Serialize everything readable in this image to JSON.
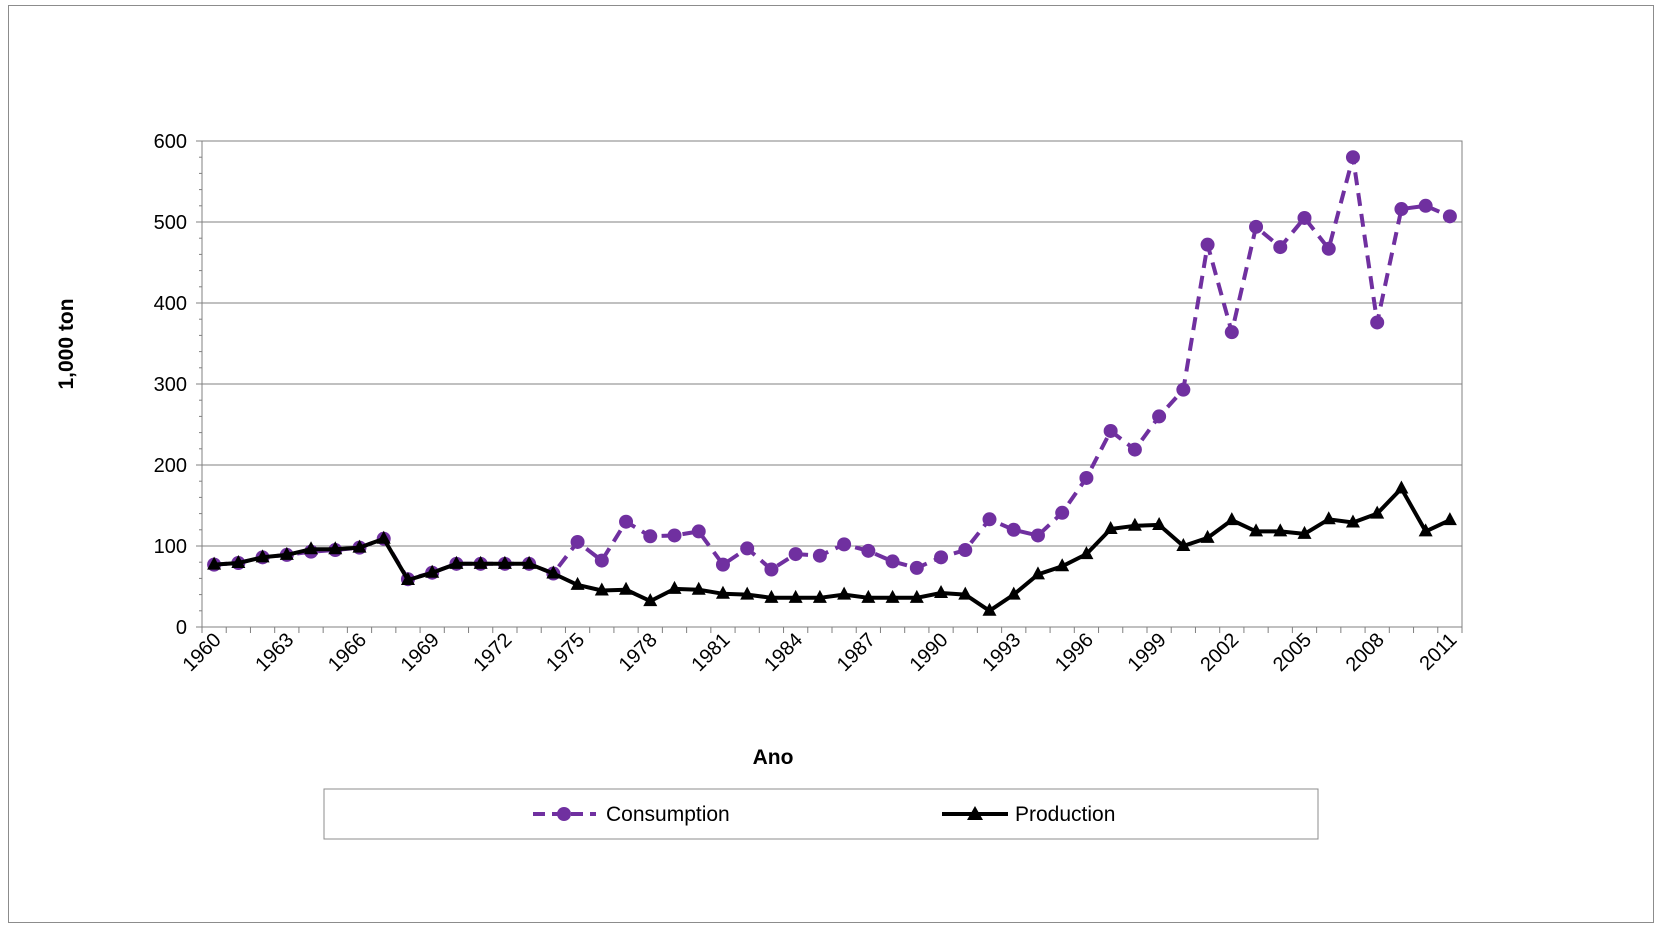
{
  "chart_data": {
    "type": "line",
    "xlabel": "Ano",
    "ylabel": "1,000 ton",
    "ylim": [
      0,
      600
    ],
    "yticks": [
      "0",
      "100",
      "200",
      "300",
      "400",
      "500",
      "600"
    ],
    "x": [
      1960,
      1961,
      1962,
      1963,
      1964,
      1965,
      1966,
      1967,
      1968,
      1969,
      1970,
      1971,
      1972,
      1973,
      1974,
      1975,
      1976,
      1977,
      1978,
      1979,
      1980,
      1981,
      1982,
      1983,
      1984,
      1985,
      1986,
      1987,
      1988,
      1989,
      1990,
      1991,
      1992,
      1993,
      1994,
      1995,
      1996,
      1997,
      1998,
      1999,
      2000,
      2001,
      2002,
      2003,
      2004,
      2005,
      2006,
      2007,
      2008,
      2009,
      2010,
      2011
    ],
    "xtick_labels": [
      "1960",
      "1963",
      "1966",
      "1969",
      "1972",
      "1975",
      "1978",
      "1981",
      "1984",
      "1987",
      "1990",
      "1993",
      "1996",
      "1999",
      "2002",
      "2005",
      "2008",
      "2011"
    ],
    "grid": "horizontal",
    "legend_position": "bottom",
    "series": [
      {
        "name": "Consumption",
        "color": "#7030a0",
        "line_style": "dashed",
        "marker": "circle",
        "values": [
          77,
          79,
          86,
          89,
          93,
          95,
          98,
          109,
          59,
          67,
          78,
          78,
          78,
          78,
          66,
          105,
          82,
          130,
          112,
          113,
          118,
          77,
          97,
          71,
          90,
          88,
          102,
          94,
          81,
          73,
          86,
          95,
          133,
          120,
          113,
          141,
          184,
          242,
          219,
          260,
          293,
          472,
          364,
          494,
          469,
          505,
          467,
          580,
          376,
          516,
          520,
          507
        ]
      },
      {
        "name": "Production",
        "color": "#000000",
        "line_style": "solid",
        "marker": "triangle",
        "values": [
          77,
          79,
          86,
          89,
          96,
          96,
          98,
          109,
          58,
          67,
          78,
          78,
          78,
          78,
          66,
          52,
          45,
          46,
          32,
          47,
          46,
          41,
          40,
          36,
          36,
          36,
          40,
          36,
          36,
          36,
          42,
          40,
          20,
          40,
          65,
          75,
          90,
          121,
          125,
          126,
          100,
          110,
          132,
          118,
          118,
          115,
          133,
          129,
          140,
          171,
          118,
          132
        ]
      }
    ]
  }
}
